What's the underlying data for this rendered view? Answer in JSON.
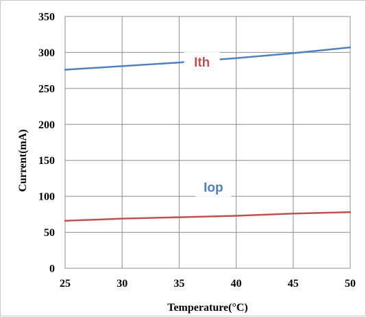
{
  "chart_data": {
    "type": "line",
    "xlabel": "Temperature(°C)",
    "ylabel": "Current(mA)",
    "xlim": [
      25,
      50
    ],
    "ylim": [
      0,
      350
    ],
    "x_ticks": [
      "25",
      "30",
      "35",
      "40",
      "45",
      "50"
    ],
    "y_ticks": [
      "0",
      "50",
      "100",
      "150",
      "200",
      "250",
      "300",
      "350"
    ],
    "grid": true,
    "x": [
      25,
      30,
      35,
      40,
      45,
      50
    ],
    "series": [
      {
        "name": "Iop",
        "values": [
          276,
          281,
          286,
          292,
          299,
          307
        ],
        "color": "#4f81bd"
      },
      {
        "name": "Ith",
        "values": [
          66,
          69,
          71,
          73,
          76,
          78
        ],
        "color": "#c0504d"
      }
    ]
  }
}
